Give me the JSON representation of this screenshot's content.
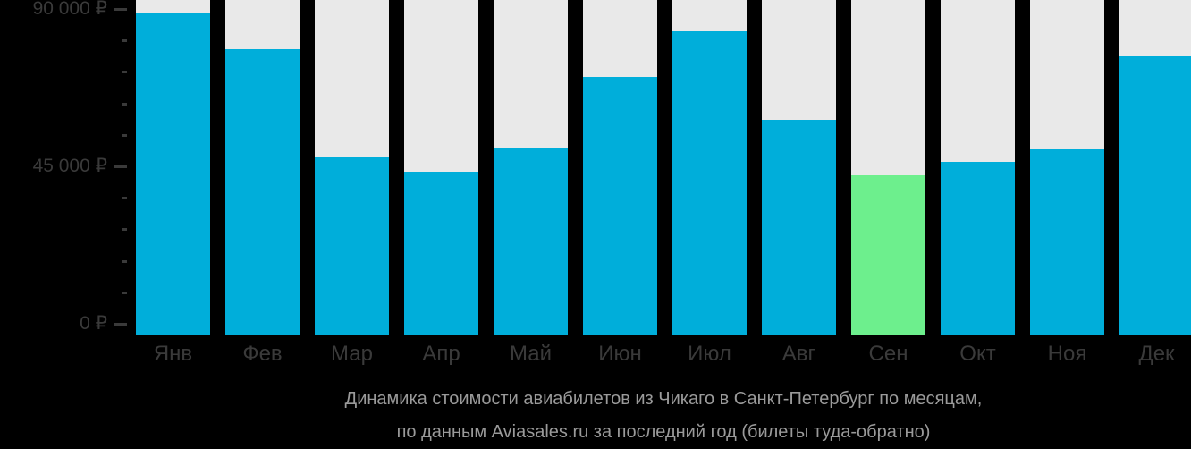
{
  "chart_data": {
    "type": "bar",
    "title": "Динамика стоимости авиабилетов из Чикаго в Санкт-Петербург по месяцам,",
    "subtitle": "по данным Aviasales.ru за последний год (билеты туда-обратно)",
    "categories": [
      "Янв",
      "Фев",
      "Мар",
      "Апр",
      "Май",
      "Июн",
      "Июл",
      "Авг",
      "Сен",
      "Окт",
      "Ноя",
      "Дек"
    ],
    "values": [
      88700,
      78500,
      47600,
      43400,
      50300,
      70600,
      83600,
      58400,
      42500,
      46200,
      49900,
      76400
    ],
    "unit": "₽",
    "highlighted_category": "Сен",
    "xlabel": "",
    "ylabel": "",
    "ylim": [
      0,
      90000
    ],
    "yticks": [
      {
        "value": 0,
        "label": "0 ₽"
      },
      {
        "value": 45000,
        "label": "45 000 ₽"
      },
      {
        "value": 90000,
        "label": "90 000 ₽"
      }
    ],
    "minor_tick_step": 9000,
    "grid": false,
    "legend_position": "none",
    "colors": {
      "bar": "#00AEDA",
      "bar_highlight": "#6DEF8D",
      "track": "#E9E9E9",
      "background": "#000000",
      "axis_text": "#3A3A3A",
      "caption_text": "#9A9A9A"
    }
  }
}
